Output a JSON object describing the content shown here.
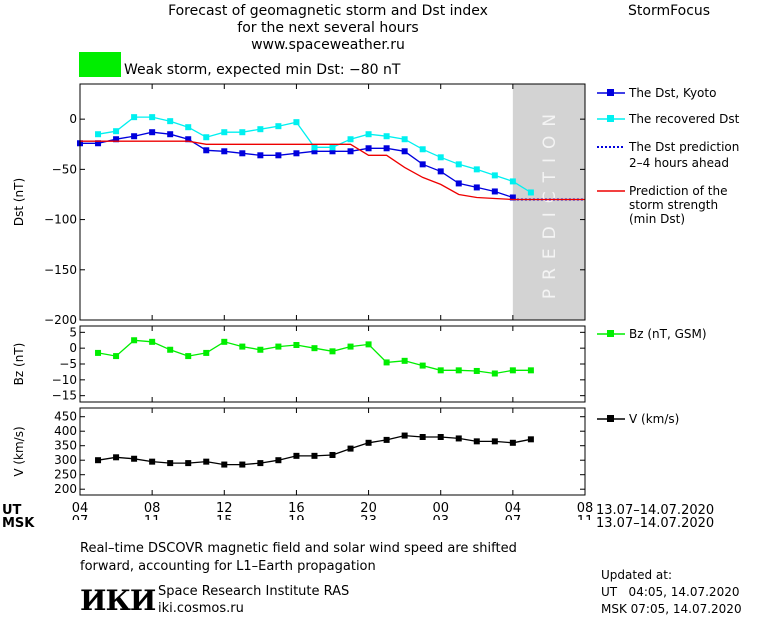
{
  "header": {
    "line1": "Forecast of geomagnetic storm and Dst index",
    "line2": "for the next several hours",
    "line3": "www.spaceweather.ru",
    "brand": "StormFocus",
    "status_color": "#00ee00",
    "status_text": "Weak storm, expected min Dst: −80 nT"
  },
  "legend": {
    "dst_kyoto": "The Dst, Kyoto",
    "dst_recovered": "The recovered Dst",
    "dst_prediction_1": "The Dst prediction",
    "dst_prediction_2": "2–4 hours ahead",
    "storm_pred_1": "Prediction of the",
    "storm_pred_2": "storm strength",
    "storm_pred_3": "(min Dst)",
    "bz": "Bz (nT, GSM)",
    "v": "V (km/s)"
  },
  "axes": {
    "ut_label": "UT",
    "msk_label": "MSK",
    "ut_ticks": [
      "04",
      "08",
      "12",
      "16",
      "20",
      "00",
      "04",
      "08"
    ],
    "msk_ticks": [
      "07",
      "11",
      "15",
      "19",
      "23",
      "03",
      "07",
      "11"
    ],
    "date_range_ut": "13.07–14.07.2020",
    "date_range_msk": "13.07–14.07.2020",
    "prediction_text": "PREDICTION"
  },
  "footer": {
    "note_line1": "Real–time DSCOVR magnetic field and solar wind speed are shifted",
    "note_line2": "forward, accounting for L1–Earth propagation",
    "logo": "ИКИ",
    "institute": "Space Research Institute RAS",
    "site": "iki.cosmos.ru",
    "updated_label": "Updated at:",
    "updated_ut": "UT   04:05, 14.07.2020",
    "updated_msk": "MSK 07:05, 14.07.2020"
  },
  "colors": {
    "dst_kyoto": "#0000dd",
    "dst_recovered": "#00f0f0",
    "storm_pred": "#ee0000",
    "bz": "#00ee00",
    "v": "#000000",
    "prediction_band": "#d3d3d3"
  },
  "chart_data": [
    {
      "type": "line",
      "title": "",
      "ylabel": "Dst (nT)",
      "xunit": "hours from 13.07 04 UT",
      "xlim": [
        0,
        28
      ],
      "ylim": [
        -200,
        35
      ],
      "yticks": [
        0,
        -50,
        -100,
        -150,
        -200
      ],
      "prediction_band": [
        24,
        28
      ],
      "series": [
        {
          "name": "The Dst, Kyoto",
          "x": [
            0,
            1,
            2,
            3,
            4,
            5,
            6,
            7,
            8,
            9,
            10,
            11,
            12,
            13,
            14,
            15,
            16,
            17,
            18,
            19,
            20,
            21,
            22,
            23,
            24
          ],
          "values": [
            -24,
            -24,
            -20,
            -17,
            -13,
            -15,
            -20,
            -31,
            -32,
            -34,
            -36,
            -36,
            -34,
            -32,
            -32,
            -32,
            -29,
            -29,
            -32,
            -45,
            -52,
            -64,
            -68,
            -72,
            -78
          ]
        },
        {
          "name": "The recovered Dst",
          "x": [
            1,
            2,
            3,
            4,
            5,
            6,
            7,
            8,
            9,
            10,
            11,
            12,
            13,
            14,
            15,
            16,
            17,
            18,
            19,
            20,
            21,
            22,
            23,
            24,
            25
          ],
          "values": [
            -15,
            -12,
            2,
            2,
            -2,
            -8,
            -18,
            -13,
            -13,
            -10,
            -7,
            -3,
            -28,
            -28,
            -20,
            -15,
            -17,
            -20,
            -30,
            -38,
            -45,
            -50,
            -56,
            -62,
            -73
          ]
        },
        {
          "name": "The Dst prediction 2–4 hours ahead",
          "x": [
            24,
            25,
            26,
            27,
            28
          ],
          "values": [
            -80,
            -80,
            -80,
            -80,
            -80
          ]
        },
        {
          "name": "Prediction of the storm strength (min Dst)",
          "x": [
            0,
            1,
            2,
            3,
            4,
            5,
            6,
            7,
            8,
            9,
            10,
            11,
            12,
            13,
            14,
            15,
            16,
            17,
            18,
            19,
            20,
            21,
            22,
            23,
            24,
            25,
            26,
            27,
            28
          ],
          "values": [
            -22,
            -22,
            -22,
            -22,
            -22,
            -22,
            -22,
            -25,
            -25,
            -25,
            -25,
            -25,
            -25,
            -25,
            -25,
            -25,
            -36,
            -36,
            -48,
            -58,
            -65,
            -75,
            -78,
            -79,
            -80,
            -80,
            -80,
            -80,
            -80
          ]
        }
      ]
    },
    {
      "type": "line",
      "ylabel": "Bz (nT)",
      "xlim": [
        0,
        28
      ],
      "ylim": [
        -17,
        7
      ],
      "yticks": [
        5,
        0,
        -5,
        -10,
        -15
      ],
      "series": [
        {
          "name": "Bz (nT, GSM)",
          "x": [
            1,
            2,
            3,
            4,
            5,
            6,
            7,
            8,
            9,
            10,
            11,
            12,
            13,
            14,
            15,
            16,
            17,
            18,
            19,
            20,
            21,
            22,
            23,
            24,
            25
          ],
          "values": [
            -1.5,
            -2.5,
            2.5,
            2,
            -0.5,
            -2.5,
            -1.5,
            2,
            0.5,
            -0.5,
            0.5,
            1,
            0,
            -1,
            0.5,
            1.2,
            -4.5,
            -4,
            -5.5,
            -7,
            -7,
            -7.2,
            -8,
            -7,
            -7
          ]
        }
      ]
    },
    {
      "type": "line",
      "ylabel": "V (km/s)",
      "xlim": [
        0,
        28
      ],
      "ylim": [
        180,
        480
      ],
      "yticks": [
        450,
        400,
        350,
        300,
        250,
        200
      ],
      "series": [
        {
          "name": "V (km/s)",
          "x": [
            1,
            2,
            3,
            4,
            5,
            6,
            7,
            8,
            9,
            10,
            11,
            12,
            13,
            14,
            15,
            16,
            17,
            18,
            19,
            20,
            21,
            22,
            23,
            24,
            25
          ],
          "values": [
            300,
            310,
            305,
            295,
            290,
            290,
            295,
            285,
            285,
            290,
            300,
            315,
            315,
            318,
            340,
            360,
            370,
            385,
            380,
            380,
            375,
            365,
            365,
            360,
            372
          ]
        }
      ]
    }
  ]
}
